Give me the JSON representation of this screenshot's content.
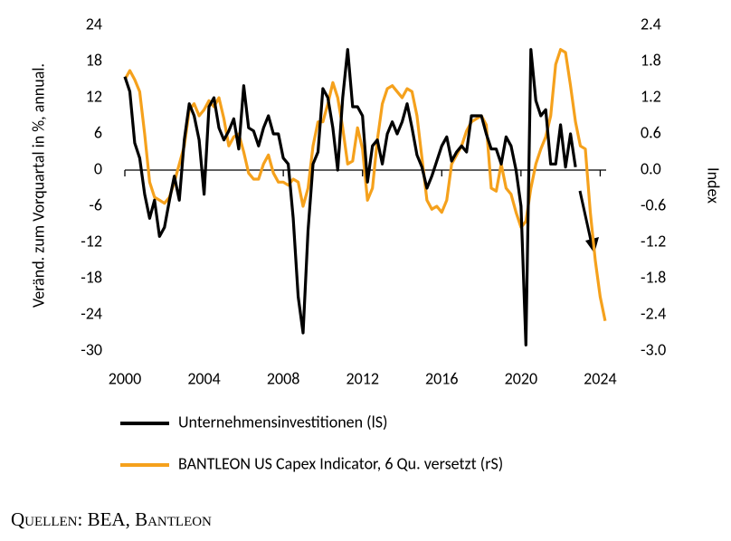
{
  "chart_data": {
    "type": "line",
    "ylabel": "Veränd. zum Vorquartal in %, annual.",
    "y2label": "Index",
    "xlim": [
      2000,
      2024.3
    ],
    "xticks": [
      2000,
      2004,
      2008,
      2012,
      2016,
      2020,
      2024
    ],
    "ylim": [
      -30,
      24
    ],
    "yticks": [
      24,
      18,
      12,
      6,
      0,
      -6,
      -12,
      -18,
      -24,
      -30
    ],
    "y2lim": [
      -3,
      2.4
    ],
    "y2ticks": [
      {
        "value": 2.4,
        "label": "2.4"
      },
      {
        "value": 1.8,
        "label": "1.8"
      },
      {
        "value": 1.2,
        "label": "1.2"
      },
      {
        "value": 0.6,
        "label": "0.6"
      },
      {
        "value": 0,
        "label": "0.0"
      },
      {
        "value": -0.6,
        "label": "-0.6"
      },
      {
        "value": -1.2,
        "label": "-1.2"
      },
      {
        "value": -1.8,
        "label": "-1.8"
      },
      {
        "value": -2.4,
        "label": "-2.4"
      },
      {
        "value": -3,
        "label": "-3.0"
      }
    ],
    "series": [
      {
        "name": "Unternehmensinvestitionen (lS)",
        "color": "#000000",
        "axis": "y",
        "x": [
          2000,
          2000.25,
          2000.5,
          2000.75,
          2001,
          2001.25,
          2001.5,
          2001.75,
          2002,
          2002.25,
          2002.5,
          2002.75,
          2003,
          2003.25,
          2003.5,
          2003.75,
          2004,
          2004.25,
          2004.5,
          2004.75,
          2005,
          2005.25,
          2005.5,
          2005.75,
          2006,
          2006.25,
          2006.5,
          2006.75,
          2007,
          2007.25,
          2007.5,
          2007.75,
          2008,
          2008.25,
          2008.5,
          2008.75,
          2009,
          2009.25,
          2009.5,
          2009.75,
          2010,
          2010.25,
          2010.5,
          2010.75,
          2011,
          2011.25,
          2011.5,
          2011.75,
          2012,
          2012.25,
          2012.5,
          2012.75,
          2013,
          2013.25,
          2013.5,
          2013.75,
          2014,
          2014.25,
          2014.5,
          2014.75,
          2015,
          2015.25,
          2015.5,
          2015.75,
          2016,
          2016.25,
          2016.5,
          2016.75,
          2017,
          2017.25,
          2017.5,
          2017.75,
          2018,
          2018.25,
          2018.5,
          2018.75,
          2019,
          2019.25,
          2019.5,
          2019.75,
          2020,
          2020.25,
          2020.5,
          2020.75,
          2021,
          2021.25,
          2021.5,
          2021.75,
          2022,
          2022.25,
          2022.5,
          2022.75
        ],
        "values": [
          15.5,
          13,
          4.5,
          2,
          -4,
          -8,
          -5,
          -11,
          -9.5,
          -5,
          -1,
          -5,
          5,
          11,
          9,
          5,
          -4,
          10.5,
          12,
          7,
          5,
          6.5,
          8.5,
          3.5,
          14,
          7,
          6.5,
          4,
          7,
          9,
          6,
          6,
          2,
          1,
          -8,
          -21,
          -27,
          -10,
          1,
          3,
          13.5,
          12,
          7,
          0,
          12,
          20,
          10.5,
          10.5,
          9,
          -2,
          4,
          5,
          1,
          6,
          8,
          6,
          8,
          11,
          7,
          2.5,
          0.5,
          -3,
          -1,
          1.5,
          4,
          5.5,
          1.5,
          3,
          4,
          3,
          9,
          9,
          9,
          6,
          3.5,
          3.5,
          1,
          5.5,
          4,
          0,
          -6,
          -29,
          20,
          11.5,
          9,
          10,
          1,
          1,
          7.5,
          0.5,
          6,
          0.5
        ]
      },
      {
        "name": "BANTLEON US Capex Indicator, 6 Qu. versetzt (rS)",
        "color": "#f5a11c",
        "axis": "y2",
        "x": [
          2000,
          2000.25,
          2000.5,
          2000.75,
          2001,
          2001.25,
          2001.5,
          2001.75,
          2002,
          2002.25,
          2002.5,
          2002.75,
          2003,
          2003.25,
          2003.5,
          2003.75,
          2004,
          2004.25,
          2004.5,
          2004.75,
          2005,
          2005.25,
          2005.5,
          2005.75,
          2006,
          2006.25,
          2006.5,
          2006.75,
          2007,
          2007.25,
          2007.5,
          2007.75,
          2008,
          2008.25,
          2008.5,
          2008.75,
          2009,
          2009.25,
          2009.5,
          2009.75,
          2010,
          2010.25,
          2010.5,
          2010.75,
          2011,
          2011.25,
          2011.5,
          2011.75,
          2012,
          2012.25,
          2012.5,
          2012.75,
          2013,
          2013.25,
          2013.5,
          2013.75,
          2014,
          2014.25,
          2014.5,
          2014.75,
          2015,
          2015.25,
          2015.5,
          2015.75,
          2016,
          2016.25,
          2016.5,
          2016.75,
          2017,
          2017.25,
          2017.5,
          2017.75,
          2018,
          2018.25,
          2018.5,
          2018.75,
          2019,
          2019.25,
          2019.5,
          2019.75,
          2020,
          2020.25,
          2020.5,
          2020.75,
          2021,
          2021.25,
          2021.5,
          2021.75,
          2022,
          2022.25,
          2022.5,
          2022.75,
          2023,
          2023.25,
          2023.5,
          2023.75,
          2024,
          2024.25
        ],
        "values": [
          1.5,
          1.65,
          1.5,
          1.3,
          0.6,
          -0.2,
          -0.45,
          -0.5,
          -0.55,
          -0.45,
          -0.2,
          0.1,
          0.4,
          1.0,
          1.1,
          0.9,
          1.0,
          1.15,
          1.05,
          1.2,
          0.85,
          0.4,
          0.55,
          0.6,
          0.3,
          -0.05,
          -0.15,
          -0.15,
          0.1,
          0.25,
          -0.05,
          -0.2,
          -0.2,
          -0.25,
          -0.15,
          -0.2,
          -0.6,
          -0.3,
          0.4,
          0.8,
          0.8,
          1.1,
          1.45,
          1.2,
          0.7,
          0.1,
          0.15,
          0.7,
          0.35,
          -0.5,
          -0.3,
          0.5,
          1.1,
          1.35,
          1.4,
          1.3,
          1.2,
          1.35,
          1.3,
          0.9,
          0.2,
          -0.5,
          -0.65,
          -0.6,
          -0.7,
          -0.5,
          0.1,
          0.25,
          0.4,
          0.65,
          0.8,
          0.85,
          0.9,
          0.75,
          -0.3,
          -0.35,
          0.1,
          -0.3,
          -0.4,
          -0.7,
          -0.95,
          -0.85,
          -0.3,
          0.1,
          0.35,
          0.55,
          0.9,
          1.75,
          2.0,
          1.95,
          1.4,
          0.8,
          0.4,
          0.35,
          -0.7,
          -1.5,
          -2.1,
          -2.5
        ]
      }
    ],
    "source": "Quellen: BEA, Bantleon"
  }
}
